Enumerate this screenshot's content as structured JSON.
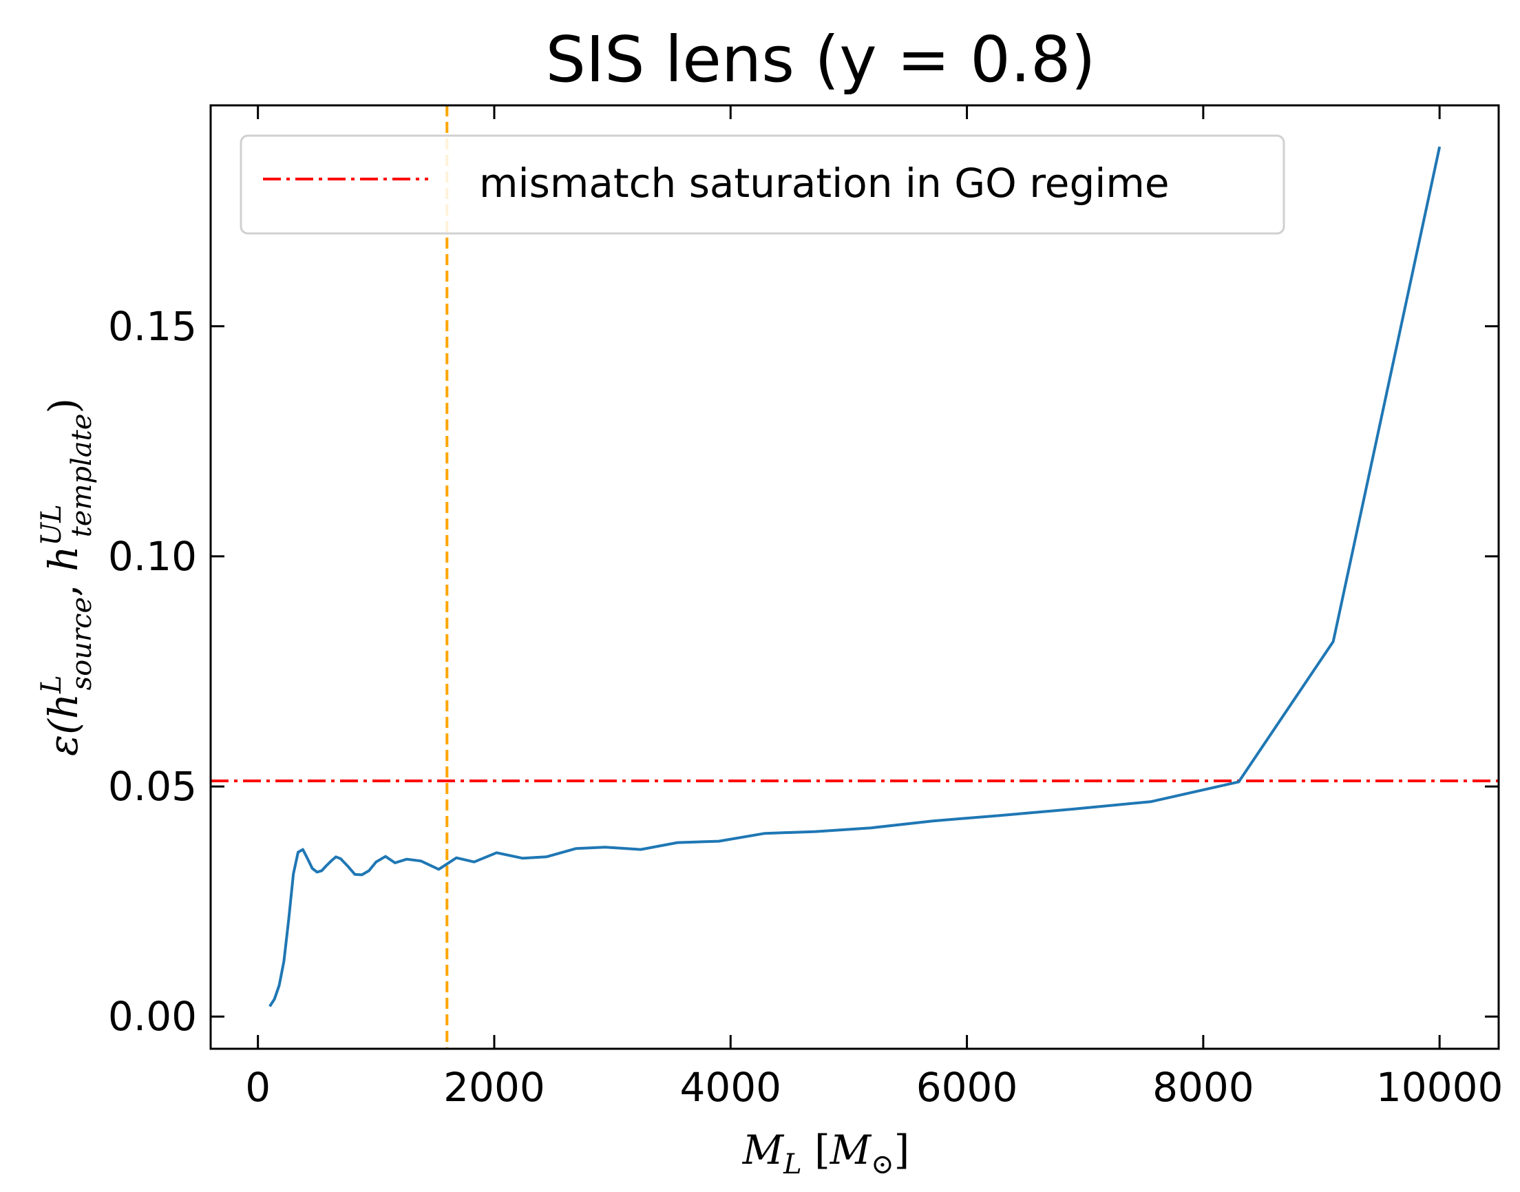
{
  "chart_data": {
    "type": "line",
    "title": "SIS lens (y = 0.8)",
    "xlabel": "M_L [M_⊙]",
    "ylabel": "ε(h^L_source, h^UL_template)",
    "xlim": [
      -400,
      10500
    ],
    "ylim": [
      -0.007,
      0.198
    ],
    "xticks": [
      0,
      2000,
      4000,
      6000,
      8000,
      10000
    ],
    "xtick_labels": [
      "0",
      "2000",
      "4000",
      "6000",
      "8000",
      "10000"
    ],
    "yticks": [
      0.0,
      0.05,
      0.1,
      0.15
    ],
    "ytick_labels": [
      "0.00",
      "0.05",
      "0.10",
      "0.15"
    ],
    "grid": false,
    "legend_position": "top-left",
    "series": [
      {
        "kind": "line",
        "color": "#1f77b4",
        "x": [
          100,
          140,
          180,
          220,
          260,
          300,
          340,
          380,
          420,
          460,
          500,
          540,
          580,
          620,
          660,
          700,
          760,
          820,
          880,
          940,
          1000,
          1080,
          1160,
          1260,
          1380,
          1530,
          1680,
          1830,
          2020,
          2240,
          2440,
          2690,
          2940,
          3240,
          3550,
          3900,
          4290,
          4720,
          5190,
          5710,
          6280,
          6910,
          7560,
          8300,
          9100,
          10000
        ],
        "y": [
          0.0022,
          0.0038,
          0.0068,
          0.012,
          0.021,
          0.031,
          0.0357,
          0.0363,
          0.0343,
          0.0322,
          0.0314,
          0.0317,
          0.0328,
          0.0338,
          0.0347,
          0.0343,
          0.0327,
          0.0309,
          0.0308,
          0.0317,
          0.0336,
          0.0348,
          0.0334,
          0.0342,
          0.0338,
          0.032,
          0.0345,
          0.0336,
          0.0356,
          0.0344,
          0.0347,
          0.0365,
          0.0368,
          0.0363,
          0.0378,
          0.0381,
          0.0398,
          0.0402,
          0.041,
          0.0425,
          0.0437,
          0.0451,
          0.0467,
          0.051,
          0.0815,
          0.189
        ]
      }
    ],
    "reference_lines": [
      {
        "orientation": "horizontal",
        "value": 0.0512,
        "color": "#ff0000",
        "style": "dash-dot",
        "label": "mismatch saturation in GO regime"
      },
      {
        "orientation": "vertical",
        "value": 1600,
        "color": "#ffa500",
        "style": "dashed"
      }
    ]
  }
}
